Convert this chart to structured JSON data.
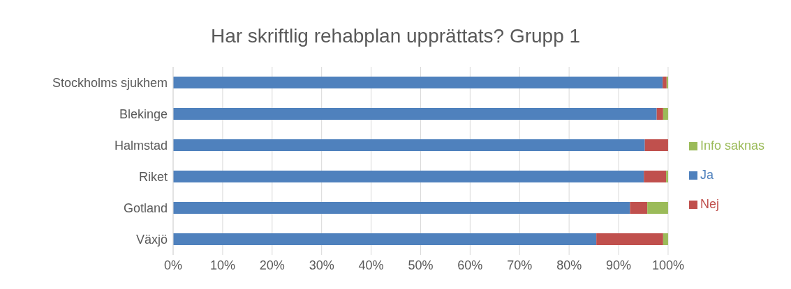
{
  "chart_data": {
    "type": "bar",
    "orientation": "horizontal",
    "stacked": true,
    "title": "Har skriftlig rehabplan upprättats? Grupp 1",
    "categories": [
      "Stockholms sjukhem",
      "Blekinge",
      "Halmstad",
      "Riket",
      "Gotland",
      "Växjö"
    ],
    "series": [
      {
        "name": "Ja",
        "color": "#4f81bd",
        "values": [
          98.9,
          97.7,
          95.3,
          95.1,
          92.3,
          85.5
        ]
      },
      {
        "name": "Nej",
        "color": "#c0504d",
        "values": [
          0.8,
          1.3,
          4.7,
          4.5,
          3.5,
          13.5
        ]
      },
      {
        "name": "Info saknas",
        "color": "#9bbb59",
        "values": [
          0.3,
          1.0,
          0,
          0.4,
          4.2,
          1.0
        ]
      }
    ],
    "xlim": [
      0,
      100
    ],
    "xticks": [
      {
        "value": 0,
        "label": "0%"
      },
      {
        "value": 10,
        "label": "10%"
      },
      {
        "value": 20,
        "label": "20%"
      },
      {
        "value": 30,
        "label": "30%"
      },
      {
        "value": 40,
        "label": "40%"
      },
      {
        "value": 50,
        "label": "50%"
      },
      {
        "value": 60,
        "label": "60%"
      },
      {
        "value": 70,
        "label": "70%"
      },
      {
        "value": 80,
        "label": "80%"
      },
      {
        "value": 90,
        "label": "90%"
      },
      {
        "value": 100,
        "label": "100%"
      }
    ],
    "grid": "x",
    "legend": "right"
  }
}
